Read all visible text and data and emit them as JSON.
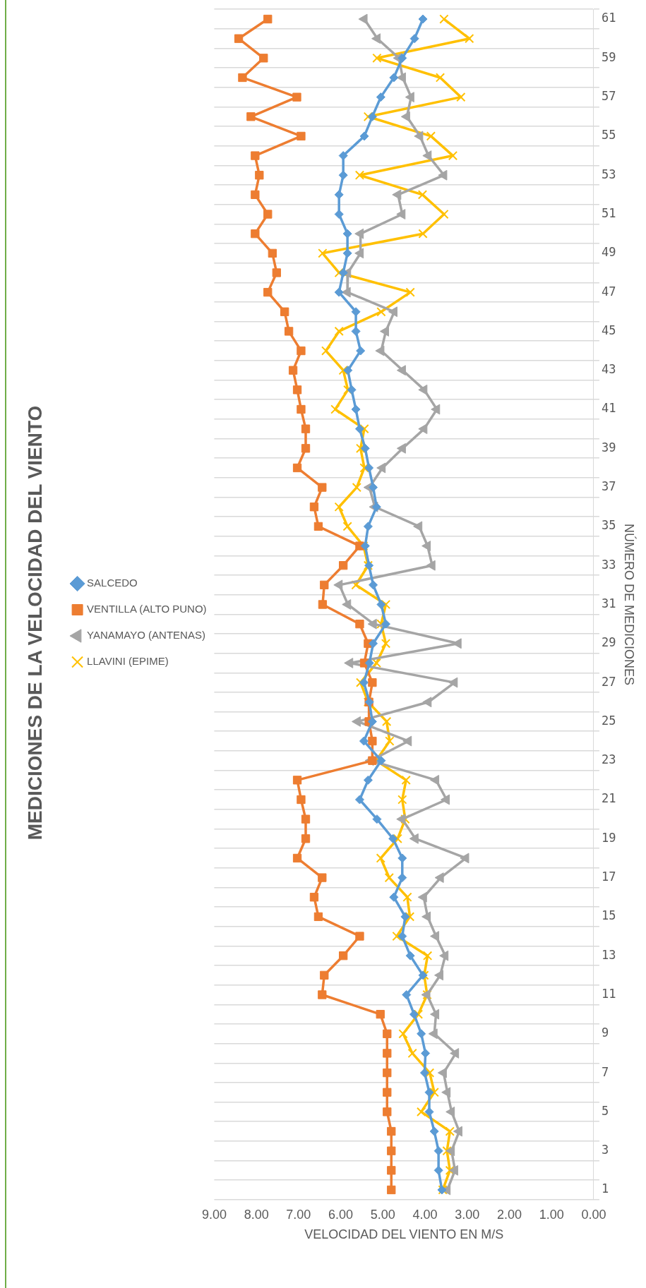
{
  "chart_data": {
    "type": "line",
    "orientation": "horizontal",
    "title": "MEDICIONES DE LA VELOCIDAD DEL VIENTO",
    "xlabel": "VELOCIDAD DEL VIENTO EN M/S",
    "ylabel": "NÚMERO DE MEDICIONES",
    "categories": [
      "61",
      null,
      "59",
      null,
      "57",
      null,
      "55",
      null,
      "53",
      null,
      "51",
      null,
      "49",
      null,
      "47",
      null,
      "45",
      null,
      "43",
      null,
      "41",
      null,
      "39",
      null,
      "37",
      null,
      "35",
      null,
      "33",
      null,
      "31",
      null,
      "29",
      null,
      "27",
      null,
      "25",
      null,
      "23",
      null,
      "21",
      null,
      "19",
      null,
      "17",
      null,
      "15",
      null,
      "13",
      null,
      "11",
      null,
      "9",
      null,
      "7",
      null,
      "5",
      null,
      "3",
      null,
      "1"
    ],
    "xlim": [
      9,
      0
    ],
    "xticks": [
      {
        "value": 0,
        "label": "0.00"
      },
      {
        "value": 1,
        "label": "1.00"
      },
      {
        "value": 2,
        "label": "2.00"
      },
      {
        "value": 3,
        "label": "3.00"
      },
      {
        "value": 4,
        "label": "4.00"
      },
      {
        "value": 5,
        "label": "5.00"
      },
      {
        "value": 6,
        "label": "6.00"
      },
      {
        "value": 7,
        "label": "7.00"
      },
      {
        "value": 8,
        "label": "8.00"
      },
      {
        "value": 9,
        "label": "9.00"
      }
    ],
    "grid": "y",
    "legend": "left",
    "series": [
      {
        "name": "SALCEDO",
        "color": "#5b9bd5",
        "marker": "diamond",
        "values": [
          4.05,
          4.25,
          4.54,
          4.74,
          5.05,
          5.25,
          5.44,
          5.94,
          5.94,
          6.04,
          6.04,
          5.84,
          5.84,
          5.94,
          6.04,
          5.64,
          5.64,
          5.53,
          5.83,
          5.74,
          5.64,
          5.55,
          5.42,
          5.33,
          5.23,
          5.15,
          5.35,
          5.42,
          5.33,
          5.23,
          5.04,
          4.93,
          5.23,
          5.32,
          5.45,
          5.32,
          5.25,
          5.45,
          5.04,
          5.35,
          5.55,
          5.14,
          4.76,
          4.54,
          4.54,
          4.74,
          4.47,
          4.54,
          4.35,
          4.05,
          4.44,
          4.26,
          4.09,
          3.99,
          4.01,
          3.9,
          3.9,
          3.78,
          3.68,
          3.68,
          3.6
        ]
      },
      {
        "name": "VENTILLA (ALTO PUNO)",
        "color": "#ed7d31",
        "marker": "square",
        "values": [
          7.73,
          8.42,
          7.83,
          8.33,
          7.04,
          8.13,
          6.94,
          8.03,
          7.93,
          8.03,
          7.73,
          8.03,
          7.62,
          7.52,
          7.73,
          7.33,
          7.23,
          6.94,
          7.13,
          7.03,
          6.94,
          6.83,
          6.83,
          7.03,
          6.44,
          6.63,
          6.53,
          5.55,
          5.94,
          6.39,
          6.43,
          5.55,
          5.35,
          5.44,
          5.25,
          5.33,
          5.33,
          5.25,
          5.25,
          7.03,
          6.94,
          6.83,
          6.83,
          7.03,
          6.44,
          6.63,
          6.53,
          5.55,
          5.94,
          6.39,
          6.44,
          5.06,
          4.9,
          4.9,
          4.9,
          4.9,
          4.9,
          4.8,
          4.8,
          4.8,
          4.8
        ]
      },
      {
        "name": "YANAMAYO (ANTENAS)",
        "color": "#a5a5a5",
        "marker": "triangle",
        "values": [
          5.44,
          5.13,
          4.62,
          4.53,
          4.33,
          4.43,
          4.12,
          3.92,
          3.55,
          4.64,
          4.54,
          5.53,
          5.53,
          5.83,
          5.84,
          4.73,
          4.93,
          5.04,
          4.53,
          4.02,
          3.72,
          4.02,
          4.53,
          5.01,
          5.32,
          5.19,
          4.14,
          3.94,
          3.83,
          6.03,
          5.83,
          5.22,
          3.21,
          5.78,
          3.3,
          3.92,
          5.6,
          4.39,
          5.29,
          3.74,
          3.49,
          4.54,
          4.23,
          3.03,
          3.63,
          4.03,
          3.94,
          3.74,
          3.52,
          3.64,
          3.95,
          3.74,
          3.78,
          3.27,
          3.56,
          3.47,
          3.37,
          3.19,
          3.37,
          3.29,
          3.47
        ]
      },
      {
        "name": "LLAVINI (EPIME)",
        "color": "#ffc000",
        "marker": "cross",
        "values": [
          3.55,
          2.95,
          5.14,
          3.64,
          3.15,
          5.35,
          3.86,
          3.34,
          5.55,
          4.06,
          3.55,
          4.05,
          6.43,
          6.04,
          4.35,
          5.04,
          6.04,
          6.35,
          5.94,
          5.83,
          6.13,
          5.44,
          5.53,
          5.44,
          5.62,
          6.04,
          5.84,
          5.46,
          5.35,
          5.64,
          4.93,
          5.04,
          4.93,
          5.15,
          5.53,
          5.35,
          4.91,
          4.84,
          5.16,
          4.45,
          4.54,
          4.47,
          4.65,
          5.05,
          4.85,
          4.42,
          4.36,
          4.67,
          3.94,
          4.02,
          3.95,
          4.16,
          4.52,
          4.3,
          3.89,
          3.78,
          4.09,
          3.41,
          3.48,
          3.41,
          3.58
        ]
      }
    ]
  }
}
